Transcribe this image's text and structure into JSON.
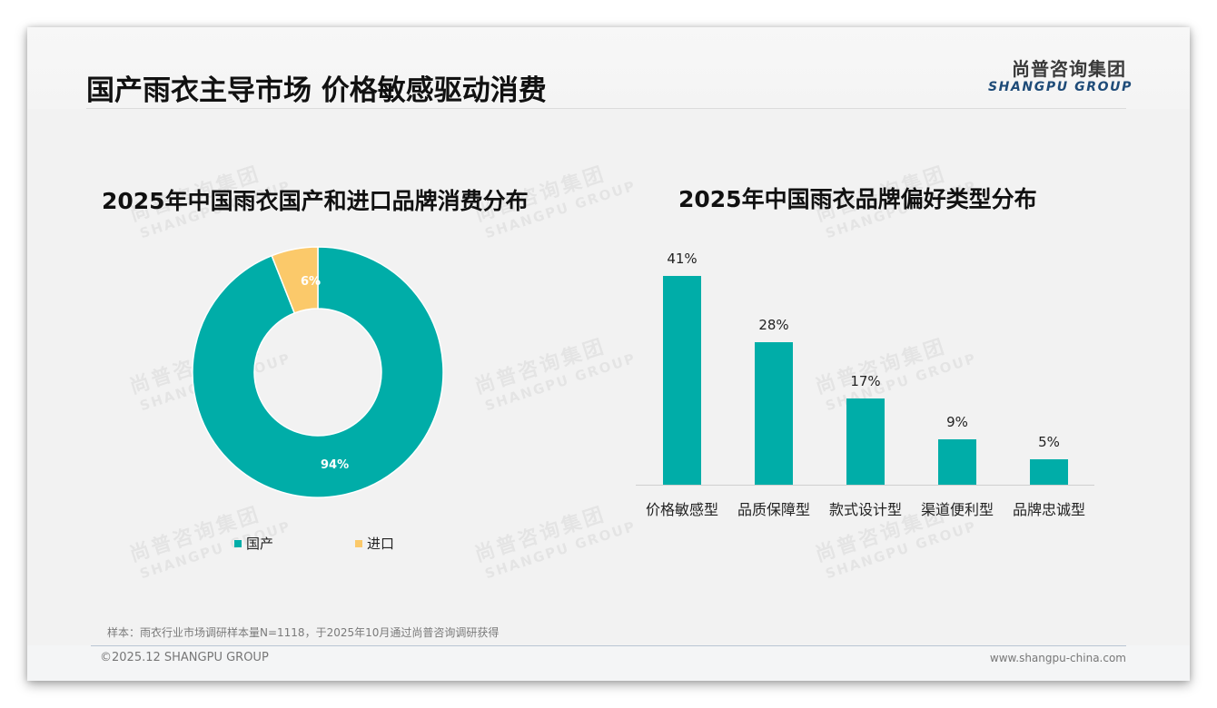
{
  "header": {
    "title": "国产雨衣主导市场 价格敏感驱动消费",
    "logo_cn": "尚普咨询集团",
    "logo_en": "SHANGPU GROUP"
  },
  "watermark": {
    "cn": "尚普咨询集团",
    "en": "SHANGPU GROUP"
  },
  "colors": {
    "teal": "#00ADA8",
    "yellow": "#FBC96A"
  },
  "chart_data": [
    {
      "type": "pie",
      "subtype": "donut",
      "title": "2025年中国雨衣国产和进口品牌消费分布",
      "categories": [
        "国产",
        "进口"
      ],
      "values": [
        94,
        6
      ],
      "labels": [
        "94%",
        "6%"
      ],
      "colors": [
        "#00ADA8",
        "#FBC96A"
      ],
      "legend_position": "bottom"
    },
    {
      "type": "bar",
      "title": "2025年中国雨衣品牌偏好类型分布",
      "categories": [
        "价格敏感型",
        "品质保障型",
        "款式设计型",
        "渠道便利型",
        "品牌忠诚型"
      ],
      "values": [
        41,
        28,
        17,
        9,
        5
      ],
      "labels": [
        "41%",
        "28%",
        "17%",
        "9%",
        "5%"
      ],
      "unit": "%",
      "color": "#00ADA8",
      "xlabel": "",
      "ylabel": "",
      "grid": false,
      "ylim": [
        0,
        45
      ]
    }
  ],
  "donut": {
    "title": "2025年中国雨衣国产和进口品牌消费分布",
    "label_domestic": "94%",
    "label_import": "6%",
    "legend": [
      {
        "label": "国产",
        "color": "#00ADA8"
      },
      {
        "label": "进口",
        "color": "#FBC96A"
      }
    ]
  },
  "bars": {
    "title": "2025年中国雨衣品牌偏好类型分布",
    "items": [
      {
        "category": "价格敏感型",
        "value": 41,
        "label": "41%"
      },
      {
        "category": "品质保障型",
        "value": 28,
        "label": "28%"
      },
      {
        "category": "款式设计型",
        "value": 17,
        "label": "17%"
      },
      {
        "category": "渠道便利型",
        "value": 9,
        "label": "9%"
      },
      {
        "category": "品牌忠诚型",
        "value": 5,
        "label": "5%"
      }
    ]
  },
  "footer": {
    "note": "样本：雨衣行业市场调研样本量N=1118，于2025年10月通过尚普咨询调研获得",
    "copyright": "©2025.12 SHANGPU GROUP",
    "website": "www.shangpu-china.com"
  }
}
